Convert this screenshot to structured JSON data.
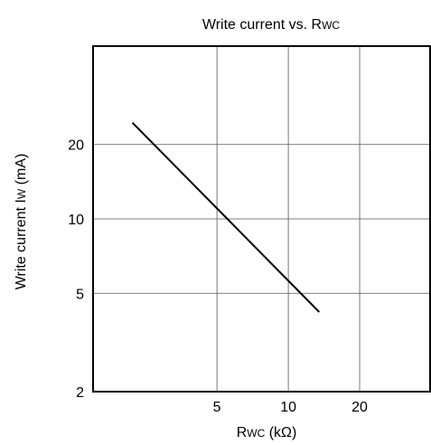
{
  "chart_data": {
    "type": "line",
    "title": "Write current vs. Rwc",
    "title_parts": {
      "main": "Write current vs. R",
      "sub": "WC"
    },
    "xlabel": "Rwc (kΩ)",
    "xlabel_parts": {
      "main": "R",
      "sub": "WC",
      "rest": " (kΩ)"
    },
    "ylabel": "Write current Iw (mA)",
    "ylabel_parts": {
      "main": "Write current I",
      "sub": "W",
      "rest": " (mA)"
    },
    "x_scale": "log",
    "y_scale": "log",
    "xlim": [
      1.5,
      40
    ],
    "ylim": [
      2,
      50
    ],
    "x_ticks": [
      5,
      10,
      20
    ],
    "x_tick_labels": [
      "5",
      "10",
      "20"
    ],
    "y_ticks": [
      2,
      5,
      10,
      20
    ],
    "y_tick_labels": [
      "2",
      "5",
      "10",
      "20"
    ],
    "grid": true,
    "series": [
      {
        "x": [
          2.2,
          13.5
        ],
        "y": [
          24.5,
          4.2
        ]
      }
    ]
  }
}
